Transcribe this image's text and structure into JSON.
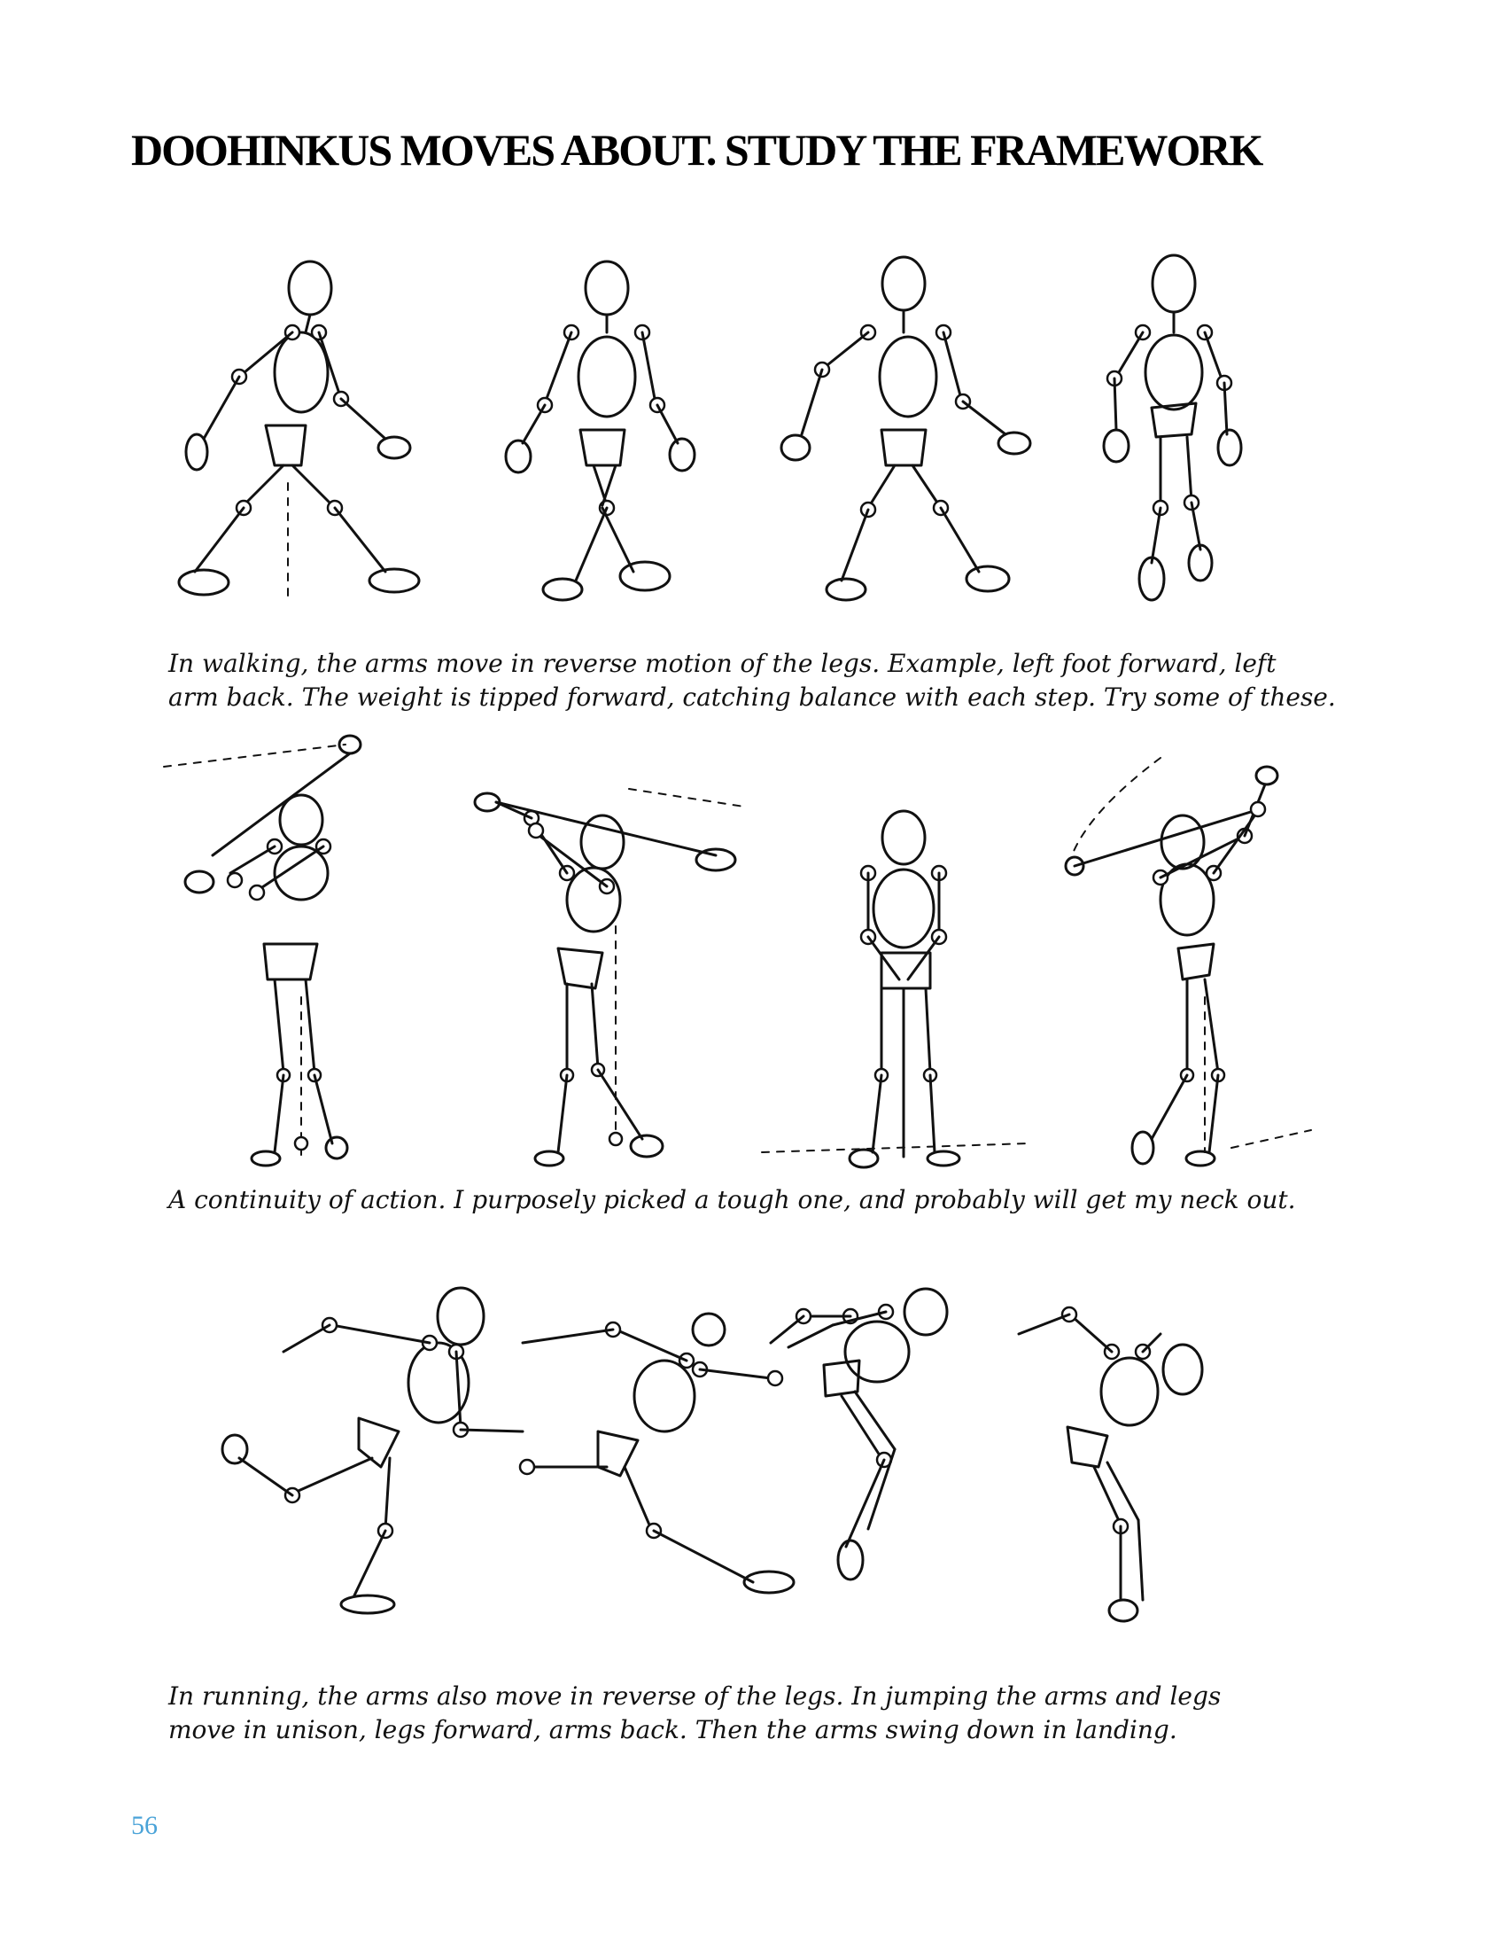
{
  "page": {
    "title": "DOOHINKUS MOVES ABOUT.  STUDY THE FRAMEWORK",
    "page_number": "56",
    "page_number_color": "#4aa3d8"
  },
  "captions": {
    "walking": {
      "line1": "In walking, the arms move in reverse motion of the legs. Example, left foot forward, left",
      "line2": "arm back. The weight is tipped forward, catching balance with each step. Try some of these."
    },
    "golf": {
      "line1": "A continuity of action. I purposely picked a tough one, and probably will get my neck out."
    },
    "running": {
      "line1": "In running, the arms also move in reverse of the legs. In jumping the arms and legs",
      "line2": "move in unison, legs forward, arms back. Then the arms swing down in landing."
    }
  }
}
